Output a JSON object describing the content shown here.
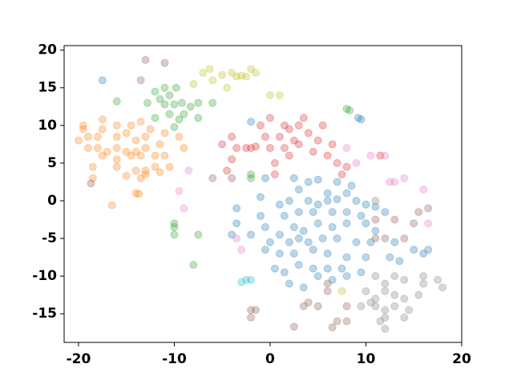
{
  "chart_data": {
    "type": "scatter",
    "alpha": 0.3,
    "xlim": [
      -21.5,
      20
    ],
    "ylim": [
      -18.8,
      20.6
    ],
    "xticks": [
      -20,
      -10,
      0,
      10,
      20
    ],
    "yticks": [
      -15,
      -10,
      -5,
      0,
      5,
      10,
      15,
      20
    ],
    "series": [
      {
        "color": "#1f77b4",
        "x": [
          -17.5,
          -2,
          9.2,
          9.5,
          -0.5,
          2.5,
          3,
          4,
          5,
          6,
          7,
          8,
          8.5,
          6,
          -1,
          1,
          2,
          4,
          5,
          7,
          9,
          10,
          11,
          -3.5,
          -1,
          1.5,
          3,
          4.5,
          6.5,
          8,
          9.5,
          12,
          -3.5,
          -2,
          -0.5,
          1,
          2.5,
          3.5,
          5,
          6.5,
          8,
          10,
          11,
          -4,
          0,
          2,
          3,
          4,
          5.5,
          7,
          9,
          10.5,
          13,
          16.5,
          16,
          13.5,
          -0.5,
          1,
          2.5,
          4.5,
          6,
          8,
          10,
          12.5,
          15,
          0.5,
          1.5,
          3,
          4.5,
          6,
          7.5,
          9.5,
          2,
          3.5,
          5,
          6.5,
          8
        ],
        "y": [
          16,
          10.5,
          11,
          10.8,
          3,
          3,
          1.5,
          2.5,
          2.8,
          1,
          2.5,
          1,
          2,
          0,
          0.5,
          -0.5,
          0,
          0,
          -0.5,
          0.2,
          0,
          -0.5,
          -0.8,
          -1,
          -2,
          -2,
          -1.5,
          -1.5,
          -1.5,
          -1.5,
          -2,
          -1.5,
          -3,
          -4.5,
          -3.5,
          -4.5,
          -3.5,
          -4,
          -3,
          -3.5,
          -3,
          -3,
          -4,
          -4.5,
          -5.5,
          -5.5,
          -5,
          -5.5,
          -5,
          -5,
          -5.5,
          -5.5,
          -5.5,
          -6.5,
          -7,
          -8,
          -6.5,
          -7,
          -7,
          -6.5,
          -7,
          -7.5,
          -7.5,
          -7.5,
          -6.5,
          -9,
          -9.5,
          -8.5,
          -9,
          -9,
          -9,
          -9.5,
          -11,
          -11.5,
          -10,
          -10.5,
          -10
        ]
      },
      {
        "color": "#ff7f0e",
        "x": [
          -17.5,
          -16,
          -14.5,
          -13.5,
          -19.5,
          -19.5,
          -19,
          -20,
          -18,
          -17.5,
          -16,
          -15,
          -14,
          -13,
          -12.5,
          -11,
          -19,
          -18,
          -17,
          -16,
          -15,
          -14,
          -13,
          -11.5,
          -9.5,
          -9,
          -17.5,
          -16,
          -14.5,
          -13.5,
          -12,
          -11,
          -18.5,
          -16,
          -14,
          -13,
          -12,
          -10.5,
          -15,
          -13.5,
          -13,
          -11.5,
          -18.5,
          -14,
          -13.7,
          -16.5
        ],
        "y": [
          10.8,
          10,
          10,
          10.5,
          10,
          9.5,
          8.5,
          8,
          8.5,
          9.5,
          8.5,
          9,
          8,
          8.5,
          9.5,
          9,
          7,
          7,
          6.5,
          7,
          6.5,
          6.5,
          7,
          7.5,
          8.5,
          7,
          6,
          5.5,
          6,
          6,
          6,
          6,
          4.5,
          4.5,
          4,
          4,
          4.5,
          4.5,
          3.3,
          3,
          3.5,
          3.8,
          3,
          1,
          0.9,
          -0.6
        ]
      },
      {
        "color": "#2ca02c",
        "x": [
          -16,
          -12.8,
          -12,
          -11.5,
          -11,
          -11,
          -10.5,
          -10,
          -9.8,
          -9.2,
          -9,
          -8.3,
          -7.5,
          -7.5,
          -6,
          -10,
          -9.5,
          -10.5,
          -12,
          -2,
          -2,
          -10,
          -10,
          -10,
          -7.5,
          -8,
          8,
          8.3
        ],
        "y": [
          13.2,
          13,
          14.5,
          13.5,
          15,
          12.8,
          14,
          12.8,
          15,
          13,
          11.5,
          12.5,
          11,
          13,
          13,
          9.8,
          10.8,
          11.5,
          11,
          3.5,
          3,
          -3,
          -3.5,
          -4.5,
          -4.5,
          -8.5,
          12.2,
          12
        ]
      },
      {
        "color": "#d62728",
        "x": [
          -4.5,
          -4,
          -3.5,
          -4,
          -2.5,
          -1.5,
          -0.5,
          0,
          0.5,
          1,
          1.5,
          2,
          2.5,
          3,
          3,
          3.5,
          4,
          4.5,
          5,
          5.5,
          6,
          6.5,
          7,
          7.5,
          8,
          2,
          1.5,
          -1,
          0,
          0.5,
          11.5,
          -5,
          -2
        ],
        "y": [
          4,
          5.5,
          7,
          8.5,
          7,
          7.2,
          8.5,
          7,
          5,
          8.5,
          10,
          9.5,
          8,
          7.5,
          10,
          11,
          9,
          6.5,
          8,
          10,
          6,
          7.5,
          5,
          3.5,
          4.5,
          6,
          7,
          10,
          11,
          3.5,
          6,
          7.5,
          7
        ]
      },
      {
        "color": "#e377c2",
        "x": [
          -9.5,
          -9,
          -3.5,
          -3,
          8,
          9,
          12,
          13,
          14,
          16,
          16.5,
          -8.5,
          10.5,
          12.5
        ],
        "y": [
          1.3,
          -1,
          -5,
          -6.5,
          7,
          5,
          6,
          2.5,
          3,
          1.5,
          -3,
          4,
          6,
          2.5
        ]
      },
      {
        "color": "#8c564b",
        "x": [
          -13,
          -11,
          -13.5,
          -6,
          -4,
          -2,
          -1.5,
          -2,
          2.5,
          3.5,
          4,
          5,
          6,
          6,
          6.5,
          7,
          8,
          8,
          11,
          12,
          13,
          14,
          15,
          16.5,
          11,
          15.5,
          -18.7
        ],
        "y": [
          18.7,
          18.3,
          16,
          3,
          3,
          -14.5,
          -14.5,
          -15.5,
          -16.7,
          -14,
          -13.5,
          -14,
          -11,
          -12,
          -16.8,
          -16,
          -14,
          -16,
          -5,
          -5,
          -2.5,
          -5,
          -3,
          -1,
          -2.5,
          -1.5,
          2.3
        ]
      },
      {
        "color": "#bcbd22",
        "x": [
          -8,
          -7,
          -6,
          -5,
          -4,
          -3.5,
          -3,
          -2.5,
          -2,
          -1.5,
          -4.5,
          -6.3,
          0,
          1,
          7.5
        ],
        "y": [
          15.5,
          17,
          16,
          16.7,
          17,
          16.5,
          16.6,
          16.5,
          17.5,
          17,
          15,
          17.5,
          14,
          14,
          -12
        ]
      },
      {
        "color": "#7f7f7f",
        "x": [
          11,
          12,
          13,
          14,
          16,
          17.5,
          18,
          10,
          11,
          12,
          13,
          14,
          15.5,
          9.5,
          10.5,
          12,
          13,
          14.5,
          11.5,
          12,
          12,
          11,
          16,
          11,
          14
        ],
        "y": [
          -10,
          -11,
          -10,
          -10.5,
          -11,
          -10.5,
          -11.5,
          -12,
          -13,
          -12,
          -12.5,
          -13,
          -12.5,
          -14,
          -13.5,
          -14.5,
          -14,
          -14.5,
          -16,
          -15.5,
          -17,
          -14,
          -10,
          0,
          -15.5
        ]
      },
      {
        "color": "#17becf",
        "x": [
          -3,
          -2.5,
          -2
        ],
        "y": [
          -10.8,
          -10.5,
          -10.5
        ]
      }
    ]
  }
}
